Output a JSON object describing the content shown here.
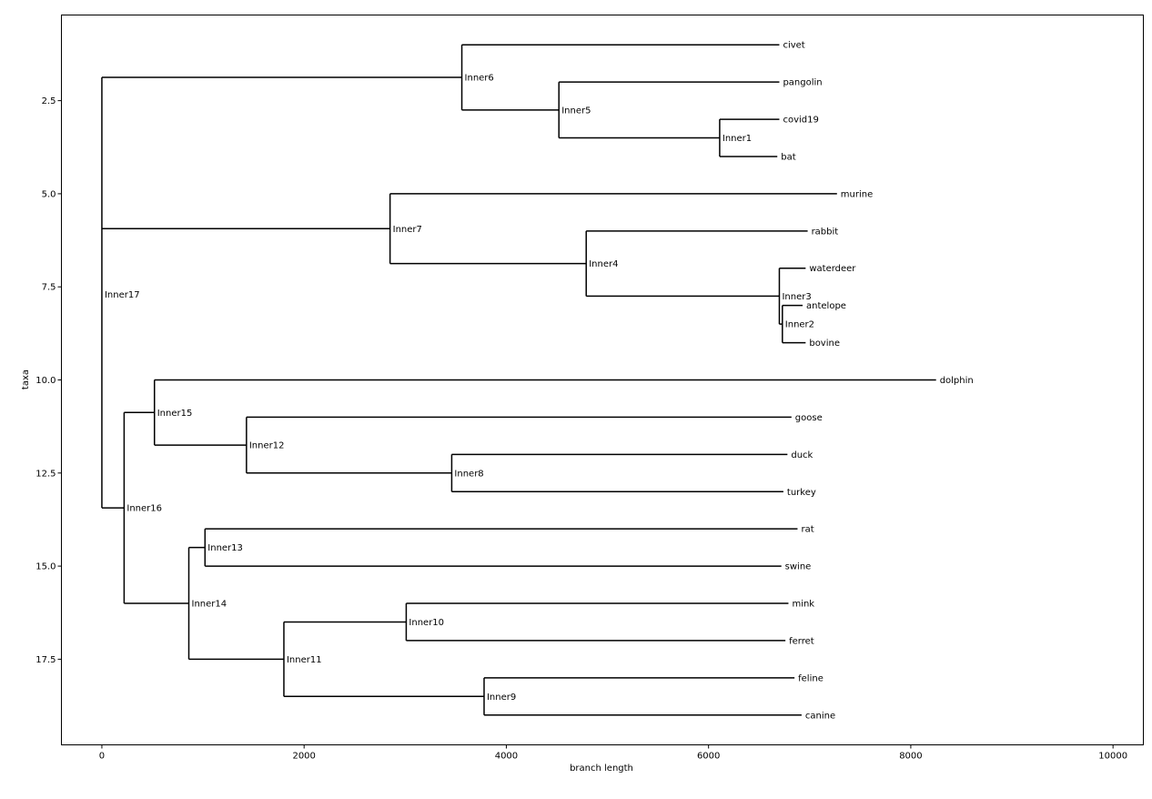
{
  "chart_data": {
    "type": "tree",
    "title": "",
    "xlabel": "branch length",
    "ylabel": "taxa",
    "xlim": [
      -400,
      10300
    ],
    "ylim": [
      19.8,
      0.2
    ],
    "xticks": [
      0,
      2000,
      4000,
      6000,
      8000,
      10000
    ],
    "xtick_labels": [
      "0",
      "2000",
      "4000",
      "6000",
      "8000",
      "10000"
    ],
    "yticks": [
      2.5,
      5.0,
      7.5,
      10.0,
      12.5,
      15.0,
      17.5
    ],
    "ytick_labels": [
      "2.5",
      "5.0",
      "7.5",
      "10.0",
      "12.5",
      "15.0",
      "17.5"
    ],
    "grid": false,
    "leaves": [
      {
        "name": "civet",
        "x": 6700,
        "y": 1
      },
      {
        "name": "pangolin",
        "x": 6700,
        "y": 2
      },
      {
        "name": "covid19",
        "x": 6700,
        "y": 3
      },
      {
        "name": "bat",
        "x": 6680,
        "y": 4
      },
      {
        "name": "murine",
        "x": 7270,
        "y": 5
      },
      {
        "name": "rabbit",
        "x": 6980,
        "y": 6
      },
      {
        "name": "waterdeer",
        "x": 6960,
        "y": 7
      },
      {
        "name": "antelope",
        "x": 6930,
        "y": 8
      },
      {
        "name": "bovine",
        "x": 6960,
        "y": 9
      },
      {
        "name": "dolphin",
        "x": 8250,
        "y": 10
      },
      {
        "name": "goose",
        "x": 6820,
        "y": 11
      },
      {
        "name": "duck",
        "x": 6780,
        "y": 12
      },
      {
        "name": "turkey",
        "x": 6740,
        "y": 13
      },
      {
        "name": "rat",
        "x": 6880,
        "y": 14
      },
      {
        "name": "swine",
        "x": 6720,
        "y": 15
      },
      {
        "name": "mink",
        "x": 6790,
        "y": 16
      },
      {
        "name": "ferret",
        "x": 6760,
        "y": 17
      },
      {
        "name": "feline",
        "x": 6850,
        "y": 18
      },
      {
        "name": "canine",
        "x": 6920,
        "y": 19
      }
    ],
    "internal_nodes": [
      {
        "name": "Inner1",
        "x": 6110,
        "y": 3.5,
        "children": [
          "covid19",
          "bat"
        ]
      },
      {
        "name": "Inner5",
        "x": 4520,
        "y": 2.75,
        "children": [
          "pangolin",
          "Inner1"
        ]
      },
      {
        "name": "Inner6",
        "x": 3560,
        "y": 1.875,
        "children": [
          "civet",
          "Inner5"
        ]
      },
      {
        "name": "Inner2",
        "x": 6730,
        "y": 8.5,
        "children": [
          "antelope",
          "bovine"
        ]
      },
      {
        "name": "Inner3",
        "x": 6700,
        "y": 7.75,
        "children": [
          "waterdeer",
          "Inner2"
        ]
      },
      {
        "name": "Inner4",
        "x": 4790,
        "y": 6.875,
        "children": [
          "rabbit",
          "Inner3"
        ]
      },
      {
        "name": "Inner7",
        "x": 2850,
        "y": 5.9375,
        "children": [
          "murine",
          "Inner4"
        ]
      },
      {
        "name": "Inner8",
        "x": 3460,
        "y": 12.5,
        "children": [
          "duck",
          "turkey"
        ]
      },
      {
        "name": "Inner12",
        "x": 1430,
        "y": 11.75,
        "children": [
          "goose",
          "Inner8"
        ]
      },
      {
        "name": "Inner15",
        "x": 520,
        "y": 10.875,
        "children": [
          "dolphin",
          "Inner12"
        ]
      },
      {
        "name": "Inner13",
        "x": 1020,
        "y": 14.5,
        "children": [
          "rat",
          "swine"
        ]
      },
      {
        "name": "Inner10",
        "x": 3010,
        "y": 16.5,
        "children": [
          "mink",
          "ferret"
        ]
      },
      {
        "name": "Inner9",
        "x": 3780,
        "y": 18.5,
        "children": [
          "feline",
          "canine"
        ]
      },
      {
        "name": "Inner11",
        "x": 1800,
        "y": 17.5,
        "children": [
          "Inner10",
          "Inner9"
        ]
      },
      {
        "name": "Inner14",
        "x": 860,
        "y": 16.0,
        "children": [
          "Inner13",
          "Inner11"
        ]
      },
      {
        "name": "Inner16",
        "x": 220,
        "y": 13.4375,
        "children": [
          "Inner15",
          "Inner14"
        ]
      },
      {
        "name": "Inner17",
        "x": 0,
        "y": 7.7,
        "children": [
          "Inner6",
          "Inner7",
          "Inner16"
        ]
      }
    ]
  }
}
